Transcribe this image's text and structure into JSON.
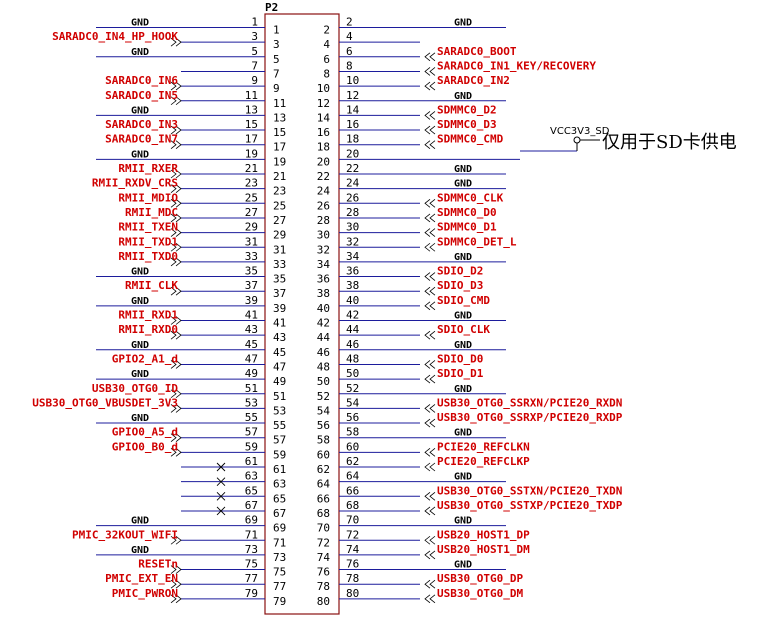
{
  "connector": {
    "name": "P2",
    "pin_count": 80,
    "inner_numbers_left_odd_rows": [
      "1",
      "3",
      "5",
      "7",
      "9",
      "11",
      "13",
      "15",
      "17",
      "19",
      "21",
      "23",
      "25",
      "27",
      "29",
      "31",
      "33",
      "35",
      "37",
      "39",
      "41",
      "43",
      "45",
      "47",
      "49",
      "51",
      "53",
      "55",
      "57",
      "59",
      "61",
      "63",
      "65",
      "67",
      "69",
      "71",
      "73",
      "75",
      "77",
      "79"
    ],
    "inner_numbers_right_even_rows": [
      "2",
      "4",
      "6",
      "8",
      "10",
      "12",
      "14",
      "16",
      "18",
      "20",
      "22",
      "24",
      "26",
      "28",
      "30",
      "32",
      "34",
      "36",
      "38",
      "40",
      "42",
      "44",
      "46",
      "48",
      "50",
      "52",
      "54",
      "56",
      "58",
      "60",
      "62",
      "64",
      "66",
      "68",
      "70",
      "72",
      "74",
      "76",
      "78",
      "80"
    ]
  },
  "left_pins": [
    {
      "num": "1",
      "label": "GND",
      "type": "gnd"
    },
    {
      "num": "3",
      "label": "SARADC0_IN4_HP_HOOK",
      "type": "net"
    },
    {
      "num": "5",
      "label": "GND",
      "type": "gnd"
    },
    {
      "num": "7",
      "label": "",
      "type": "none"
    },
    {
      "num": "9",
      "label": "SARADC0_IN6",
      "type": "net"
    },
    {
      "num": "11",
      "label": "SARADC0_IN5",
      "type": "net"
    },
    {
      "num": "13",
      "label": "GND",
      "type": "gnd"
    },
    {
      "num": "15",
      "label": "SARADC0_IN3",
      "type": "net"
    },
    {
      "num": "17",
      "label": "SARADC0_IN7",
      "type": "net"
    },
    {
      "num": "19",
      "label": "GND",
      "type": "gnd"
    },
    {
      "num": "21",
      "label": "RMII_RXER",
      "type": "net"
    },
    {
      "num": "23",
      "label": "RMII_RXDV_CRS",
      "type": "net"
    },
    {
      "num": "25",
      "label": "RMII_MDIO",
      "type": "net"
    },
    {
      "num": "27",
      "label": "RMII_MDC",
      "type": "net"
    },
    {
      "num": "29",
      "label": "RMII_TXEN",
      "type": "net"
    },
    {
      "num": "31",
      "label": "RMII_TXD1",
      "type": "net"
    },
    {
      "num": "33",
      "label": "RMII_TXD0",
      "type": "net"
    },
    {
      "num": "35",
      "label": "GND",
      "type": "gnd"
    },
    {
      "num": "37",
      "label": "RMII_CLK",
      "type": "net"
    },
    {
      "num": "39",
      "label": "GND",
      "type": "gnd"
    },
    {
      "num": "41",
      "label": "RMII_RXD1",
      "type": "net"
    },
    {
      "num": "43",
      "label": "RMII_RXD0",
      "type": "net"
    },
    {
      "num": "45",
      "label": "GND",
      "type": "gnd"
    },
    {
      "num": "47",
      "label": "GPIO2_A1_d",
      "type": "net"
    },
    {
      "num": "49",
      "label": "GND",
      "type": "gnd"
    },
    {
      "num": "51",
      "label": "USB30_OTG0_ID",
      "type": "net"
    },
    {
      "num": "53",
      "label": "USB30_OTG0_VBUSDET_3V3",
      "type": "net"
    },
    {
      "num": "55",
      "label": "GND",
      "type": "gnd"
    },
    {
      "num": "57",
      "label": "GPIO0_A5_d",
      "type": "net"
    },
    {
      "num": "59",
      "label": "GPIO0_B0_d",
      "type": "net"
    },
    {
      "num": "61",
      "label": "",
      "type": "nc"
    },
    {
      "num": "63",
      "label": "",
      "type": "nc"
    },
    {
      "num": "65",
      "label": "",
      "type": "nc"
    },
    {
      "num": "67",
      "label": "",
      "type": "nc"
    },
    {
      "num": "69",
      "label": "GND",
      "type": "gnd"
    },
    {
      "num": "71",
      "label": "PMIC_32KOUT_WIFI",
      "type": "net"
    },
    {
      "num": "73",
      "label": "GND",
      "type": "gnd"
    },
    {
      "num": "75",
      "label": "RESETn",
      "type": "net"
    },
    {
      "num": "77",
      "label": "PMIC_EXT_EN",
      "type": "net"
    },
    {
      "num": "79",
      "label": "PMIC_PWRON",
      "type": "net"
    }
  ],
  "right_pins": [
    {
      "num": "2",
      "label": "GND",
      "type": "gnd"
    },
    {
      "num": "4",
      "label": "",
      "type": "none"
    },
    {
      "num": "6",
      "label": "SARADC0_BOOT",
      "type": "net"
    },
    {
      "num": "8",
      "label": "SARADC0_IN1_KEY/RECOVERY",
      "type": "net"
    },
    {
      "num": "10",
      "label": "SARADC0_IN2",
      "type": "net"
    },
    {
      "num": "12",
      "label": "GND",
      "type": "gnd"
    },
    {
      "num": "14",
      "label": "SDMMC0_D2",
      "type": "net"
    },
    {
      "num": "16",
      "label": "SDMMC0_D3",
      "type": "net"
    },
    {
      "num": "18",
      "label": "SDMMC0_CMD",
      "type": "net"
    },
    {
      "num": "20",
      "label": "VCC3V3_SD",
      "type": "power"
    },
    {
      "num": "22",
      "label": "GND",
      "type": "gnd"
    },
    {
      "num": "24",
      "label": "GND",
      "type": "gnd"
    },
    {
      "num": "26",
      "label": "SDMMC0_CLK",
      "type": "net"
    },
    {
      "num": "28",
      "label": "SDMMC0_D0",
      "type": "net"
    },
    {
      "num": "30",
      "label": "SDMMC0_D1",
      "type": "net"
    },
    {
      "num": "32",
      "label": "SDMMC0_DET_L",
      "type": "net"
    },
    {
      "num": "34",
      "label": "GND",
      "type": "gnd"
    },
    {
      "num": "36",
      "label": "SDIO_D2",
      "type": "net"
    },
    {
      "num": "38",
      "label": "SDIO_D3",
      "type": "net"
    },
    {
      "num": "40",
      "label": "SDIO_CMD",
      "type": "net"
    },
    {
      "num": "42",
      "label": "GND",
      "type": "gnd"
    },
    {
      "num": "44",
      "label": "SDIO_CLK",
      "type": "net"
    },
    {
      "num": "46",
      "label": "GND",
      "type": "gnd"
    },
    {
      "num": "48",
      "label": "SDIO_D0",
      "type": "net"
    },
    {
      "num": "50",
      "label": "SDIO_D1",
      "type": "net"
    },
    {
      "num": "52",
      "label": "GND",
      "type": "gnd"
    },
    {
      "num": "54",
      "label": "USB30_OTG0_SSRXN/PCIE20_RXDN",
      "type": "net"
    },
    {
      "num": "56",
      "label": "USB30_OTG0_SSRXP/PCIE20_RXDP",
      "type": "net"
    },
    {
      "num": "58",
      "label": "GND",
      "type": "gnd"
    },
    {
      "num": "60",
      "label": "PCIE20_REFCLKN",
      "type": "net"
    },
    {
      "num": "62",
      "label": "PCIE20_REFCLKP",
      "type": "net"
    },
    {
      "num": "64",
      "label": "GND",
      "type": "gnd"
    },
    {
      "num": "66",
      "label": "USB30_OTG0_SSTXN/PCIE20_TXDN",
      "type": "net"
    },
    {
      "num": "68",
      "label": "USB30_OTG0_SSTXP/PCIE20_TXDP",
      "type": "net"
    },
    {
      "num": "70",
      "label": "GND",
      "type": "gnd"
    },
    {
      "num": "72",
      "label": "USB20_HOST1_DP",
      "type": "net"
    },
    {
      "num": "74",
      "label": "USB20_HOST1_DM",
      "type": "net"
    },
    {
      "num": "76",
      "label": "GND",
      "type": "gnd"
    },
    {
      "num": "78",
      "label": "USB30_OTG0_DP",
      "type": "net"
    },
    {
      "num": "80",
      "label": "USB30_OTG0_DM",
      "type": "net"
    }
  ],
  "power_net": {
    "label": "VCC3V3_SD",
    "note": "仅用于SD卡供电"
  },
  "colors": {
    "wire": "#1c1c9c",
    "net_label": "#d00000",
    "box": "#8a1010",
    "pin_num": "#000000"
  }
}
